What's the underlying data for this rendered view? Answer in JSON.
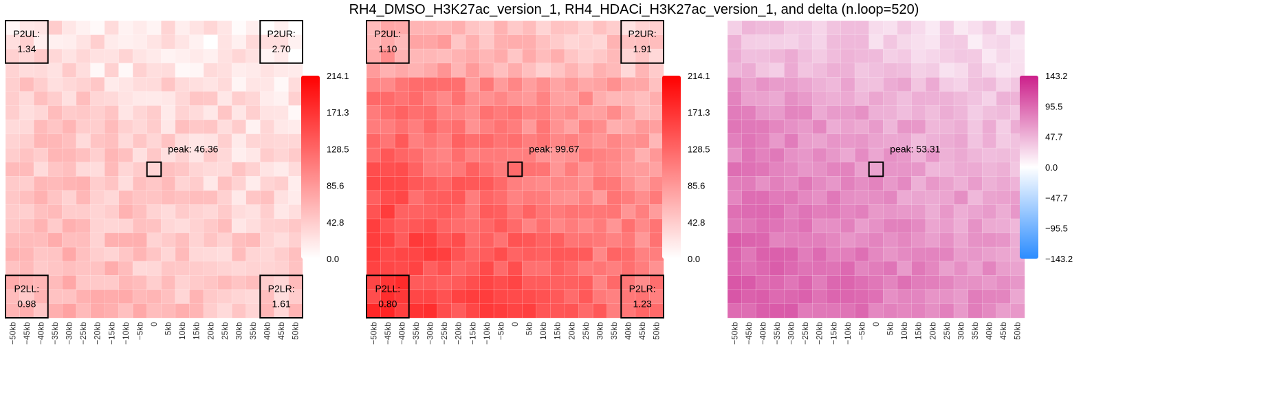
{
  "title": "RH4_DMSO_H3K27ac_version_1, RH4_HDACi_H3K27ac_version_1, and delta (n.loop=520)",
  "chart_data": [
    {
      "type": "heatmap",
      "id": "dmso",
      "x_tick_labels": [
        "−50kb",
        "−45kb",
        "−40kb",
        "−35kb",
        "−30kb",
        "−25kb",
        "−20kb",
        "−15kb",
        "−10kb",
        "−5kb",
        "0",
        "5kb",
        "10kb",
        "15kb",
        "20kb",
        "25kb",
        "30kb",
        "35kb",
        "40kb",
        "45kb",
        "50kb"
      ],
      "peak_label": "peak: 46.36",
      "corners": {
        "ul": {
          "label": "P2UL:",
          "value": "1.34"
        },
        "ur": {
          "label": "P2UR:",
          "value": "2.70"
        },
        "ll": {
          "label": "P2LL:",
          "value": "0.98"
        },
        "lr": {
          "label": "P2LR:",
          "value": "1.61"
        }
      },
      "colorbar": {
        "tick_labels": [
          "214.1",
          "171.3",
          "128.5",
          "85.6",
          "42.8",
          "0.0"
        ],
        "range": [
          0,
          214.1
        ],
        "colors": {
          "high": "#ff0000",
          "low": "#ffffff"
        }
      }
    },
    {
      "type": "heatmap",
      "id": "hdaci",
      "x_tick_labels": [
        "−50kb",
        "−45kb",
        "−40kb",
        "−35kb",
        "−30kb",
        "−25kb",
        "−20kb",
        "−15kb",
        "−10kb",
        "−5kb",
        "0",
        "5kb",
        "10kb",
        "15kb",
        "20kb",
        "25kb",
        "30kb",
        "35kb",
        "40kb",
        "45kb",
        "50kb"
      ],
      "peak_label": "peak: 99.67",
      "corners": {
        "ul": {
          "label": "P2UL:",
          "value": "1.10"
        },
        "ur": {
          "label": "P2UR:",
          "value": "1.91"
        },
        "ll": {
          "label": "P2LL:",
          "value": "0.80"
        },
        "lr": {
          "label": "P2LR:",
          "value": "1.23"
        }
      },
      "colorbar": {
        "tick_labels": [
          "214.1",
          "171.3",
          "128.5",
          "85.6",
          "42.8",
          "0.0"
        ],
        "range": [
          0,
          214.1
        ],
        "colors": {
          "high": "#ff0000",
          "low": "#ffffff"
        }
      }
    },
    {
      "type": "heatmap",
      "id": "delta",
      "x_tick_labels": [
        "−50kb",
        "−45kb",
        "−40kb",
        "−35kb",
        "−30kb",
        "−25kb",
        "−20kb",
        "−15kb",
        "−10kb",
        "−5kb",
        "0",
        "5kb",
        "10kb",
        "15kb",
        "20kb",
        "25kb",
        "30kb",
        "35kb",
        "40kb",
        "45kb",
        "50kb"
      ],
      "peak_label": "peak: 53.31",
      "colorbar": {
        "tick_labels": [
          "143.2",
          "95.5",
          "47.7",
          "0.0",
          "−47.7",
          "−95.5",
          "−143.2"
        ],
        "range": [
          -143.2,
          143.2
        ],
        "colors": {
          "high": "#cc1f8a",
          "mid": "#ffffff",
          "low": "#2b8cff"
        }
      }
    }
  ]
}
